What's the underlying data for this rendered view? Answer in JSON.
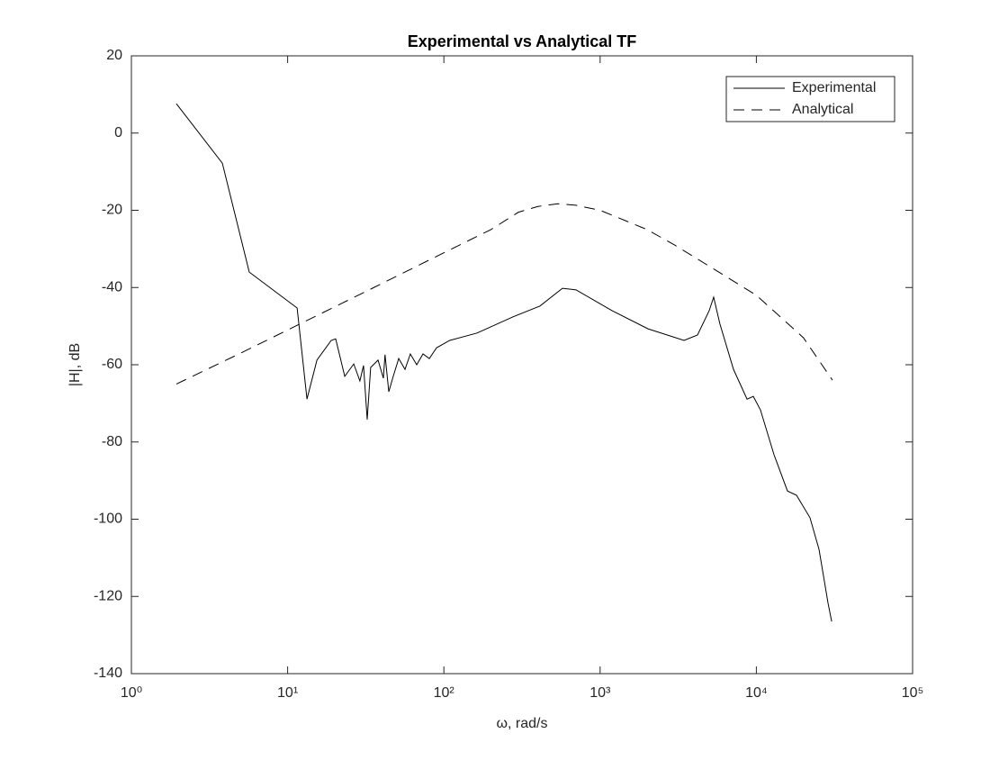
{
  "chart_data": {
    "type": "line",
    "title": "Experimental vs Analytical TF",
    "xlabel": "ω, rad/s",
    "ylabel": "|H|, dB",
    "xscale": "log",
    "xlim": [
      1,
      100000
    ],
    "xticks": [
      {
        "value": 1,
        "label": "10⁰"
      },
      {
        "value": 10,
        "label": "10¹"
      },
      {
        "value": 100,
        "label": "10²"
      },
      {
        "value": 1000,
        "label": "10³"
      },
      {
        "value": 10000,
        "label": "10⁴"
      },
      {
        "value": 100000,
        "label": "10⁵"
      }
    ],
    "ylim": [
      -140,
      20
    ],
    "yticks": [
      -140,
      -120,
      -100,
      -80,
      -60,
      -40,
      -20,
      0,
      20
    ],
    "grid": false,
    "legend": "upper right",
    "series": [
      {
        "name": "Experimental",
        "color": "#000000",
        "dash": "solid",
        "x": [
          1.94,
          3.82,
          5.68,
          11.5,
          13.3,
          15.4,
          19,
          20.3,
          23.2,
          26.5,
          29,
          30.6,
          32.3,
          34,
          37.9,
          41,
          42,
          44.4,
          47.4,
          51.4,
          56.4,
          61,
          67,
          73.5,
          80.7,
          89.8,
          109,
          163,
          277,
          412,
          574,
          701,
          1192,
          2025,
          3443,
          4200,
          4990,
          5330,
          5850,
          7140,
          8720,
          9560,
          10620,
          12970,
          15820,
          18070,
          22030,
          25180,
          26920,
          28770,
          30350
        ],
        "values": [
          7.6,
          -7.8,
          -36,
          -45.3,
          -68.9,
          -58.8,
          -53.7,
          -53.3,
          -63,
          -59.8,
          -64.2,
          -60.2,
          -74.2,
          -60.7,
          -58.8,
          -63.5,
          -57.4,
          -67,
          -63,
          -58.4,
          -61.2,
          -57.2,
          -60,
          -57.2,
          -58.4,
          -55.6,
          -53.7,
          -51.8,
          -47.6,
          -44.8,
          -40.2,
          -40.6,
          -46,
          -50.7,
          -53.7,
          -52.3,
          -46,
          -42.5,
          -49.5,
          -61.2,
          -68.9,
          -68.2,
          -71.7,
          -83.3,
          -92.7,
          -93.8,
          -99.6,
          -107.8,
          -114.8,
          -121.8,
          -126.5
        ]
      },
      {
        "name": "Analytical",
        "color": "#000000",
        "dash": "dashed",
        "x": [
          1.94,
          5,
          10,
          30,
          100,
          200,
          300,
          400,
          537,
          700,
          1000,
          2000,
          3000,
          5000,
          10000,
          20000,
          30700
        ],
        "values": [
          -65,
          -57,
          -51,
          -41.5,
          -31,
          -25,
          -20.5,
          -19,
          -18.3,
          -18.7,
          -20,
          -25,
          -29,
          -34.5,
          -42,
          -53,
          -64
        ]
      }
    ]
  }
}
